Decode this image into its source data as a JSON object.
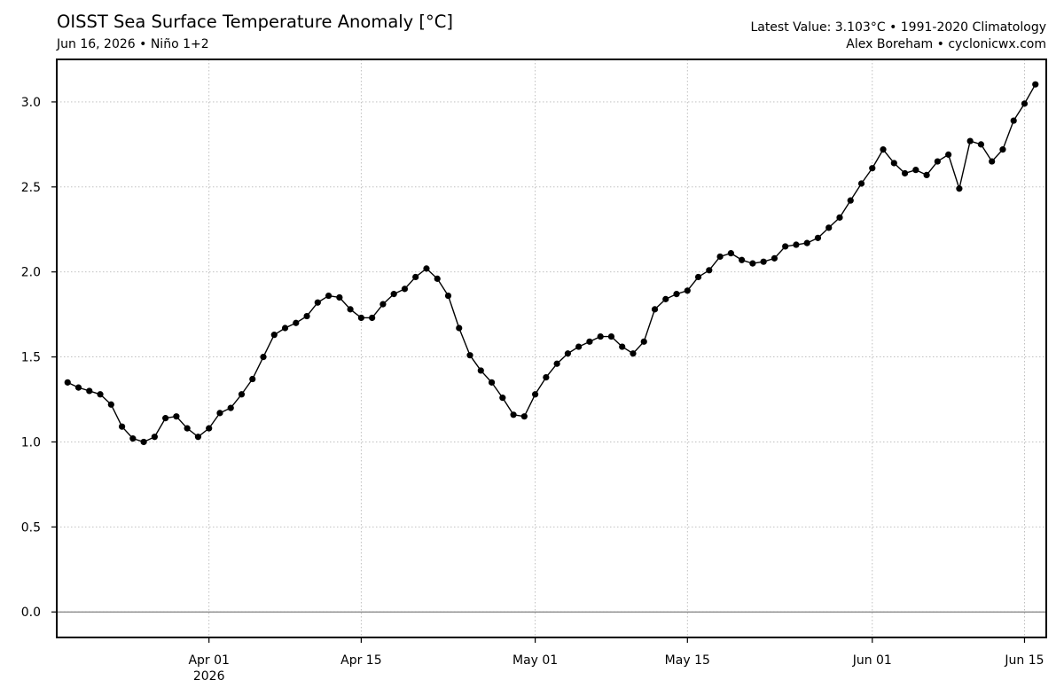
{
  "header": {
    "title": "OISST Sea Surface Temperature Anomaly [°C]",
    "subtitle": "Jun 16, 2026 • Niño 1+2",
    "info_line1": "Latest Value: 3.103°C • 1991-2020 Climatology",
    "info_line2": "Alex Boreham • cyclonicwx.com"
  },
  "chart_data": {
    "type": "line",
    "title": "OISST Sea Surface Temperature Anomaly [°C]",
    "subtitle": "Jun 16, 2026 • Niño 1+2",
    "xlabel": "",
    "ylabel": "",
    "x_start": "2026-03-19",
    "x_end": "2026-06-16",
    "xlim": [
      "2026-03-18",
      "2026-06-17"
    ],
    "ylim": [
      -0.15,
      3.25
    ],
    "x_ticks": [
      {
        "date": "2026-04-01",
        "label": "Apr 01",
        "sublabel": "2026"
      },
      {
        "date": "2026-04-15",
        "label": "Apr 15"
      },
      {
        "date": "2026-05-01",
        "label": "May 01"
      },
      {
        "date": "2026-05-15",
        "label": "May 15"
      },
      {
        "date": "2026-06-01",
        "label": "Jun 01"
      },
      {
        "date": "2026-06-15",
        "label": "Jun 15"
      }
    ],
    "y_ticks": [
      {
        "value": 0.0,
        "label": "0.0"
      },
      {
        "value": 0.5,
        "label": "0.5"
      },
      {
        "value": 1.0,
        "label": "1.0"
      },
      {
        "value": 1.5,
        "label": "1.5"
      },
      {
        "value": 2.0,
        "label": "2.0"
      },
      {
        "value": 2.5,
        "label": "2.5"
      },
      {
        "value": 3.0,
        "label": "3.0"
      }
    ],
    "grid": true,
    "zero_line": true,
    "series": [
      {
        "color": "#000000",
        "values": [
          1.35,
          1.32,
          1.3,
          1.28,
          1.22,
          1.09,
          1.02,
          1.0,
          1.03,
          1.14,
          1.15,
          1.08,
          1.03,
          1.08,
          1.17,
          1.2,
          1.28,
          1.37,
          1.5,
          1.63,
          1.67,
          1.7,
          1.74,
          1.82,
          1.86,
          1.85,
          1.78,
          1.73,
          1.73,
          1.81,
          1.87,
          1.9,
          1.97,
          2.02,
          1.96,
          1.86,
          1.67,
          1.51,
          1.42,
          1.35,
          1.26,
          1.16,
          1.15,
          1.28,
          1.38,
          1.46,
          1.52,
          1.56,
          1.59,
          1.62,
          1.62,
          1.56,
          1.52,
          1.59,
          1.78,
          1.84,
          1.87,
          1.89,
          1.97,
          2.01,
          2.09,
          2.11,
          2.07,
          2.05,
          2.06,
          2.08,
          2.15,
          2.16,
          2.17,
          2.2,
          2.26,
          2.32,
          2.42,
          2.52,
          2.61,
          2.72,
          2.64,
          2.58,
          2.6,
          2.57,
          2.65,
          2.69,
          2.49,
          2.77,
          2.75,
          2.65,
          2.72,
          2.89,
          2.99,
          3.103
        ]
      }
    ]
  }
}
